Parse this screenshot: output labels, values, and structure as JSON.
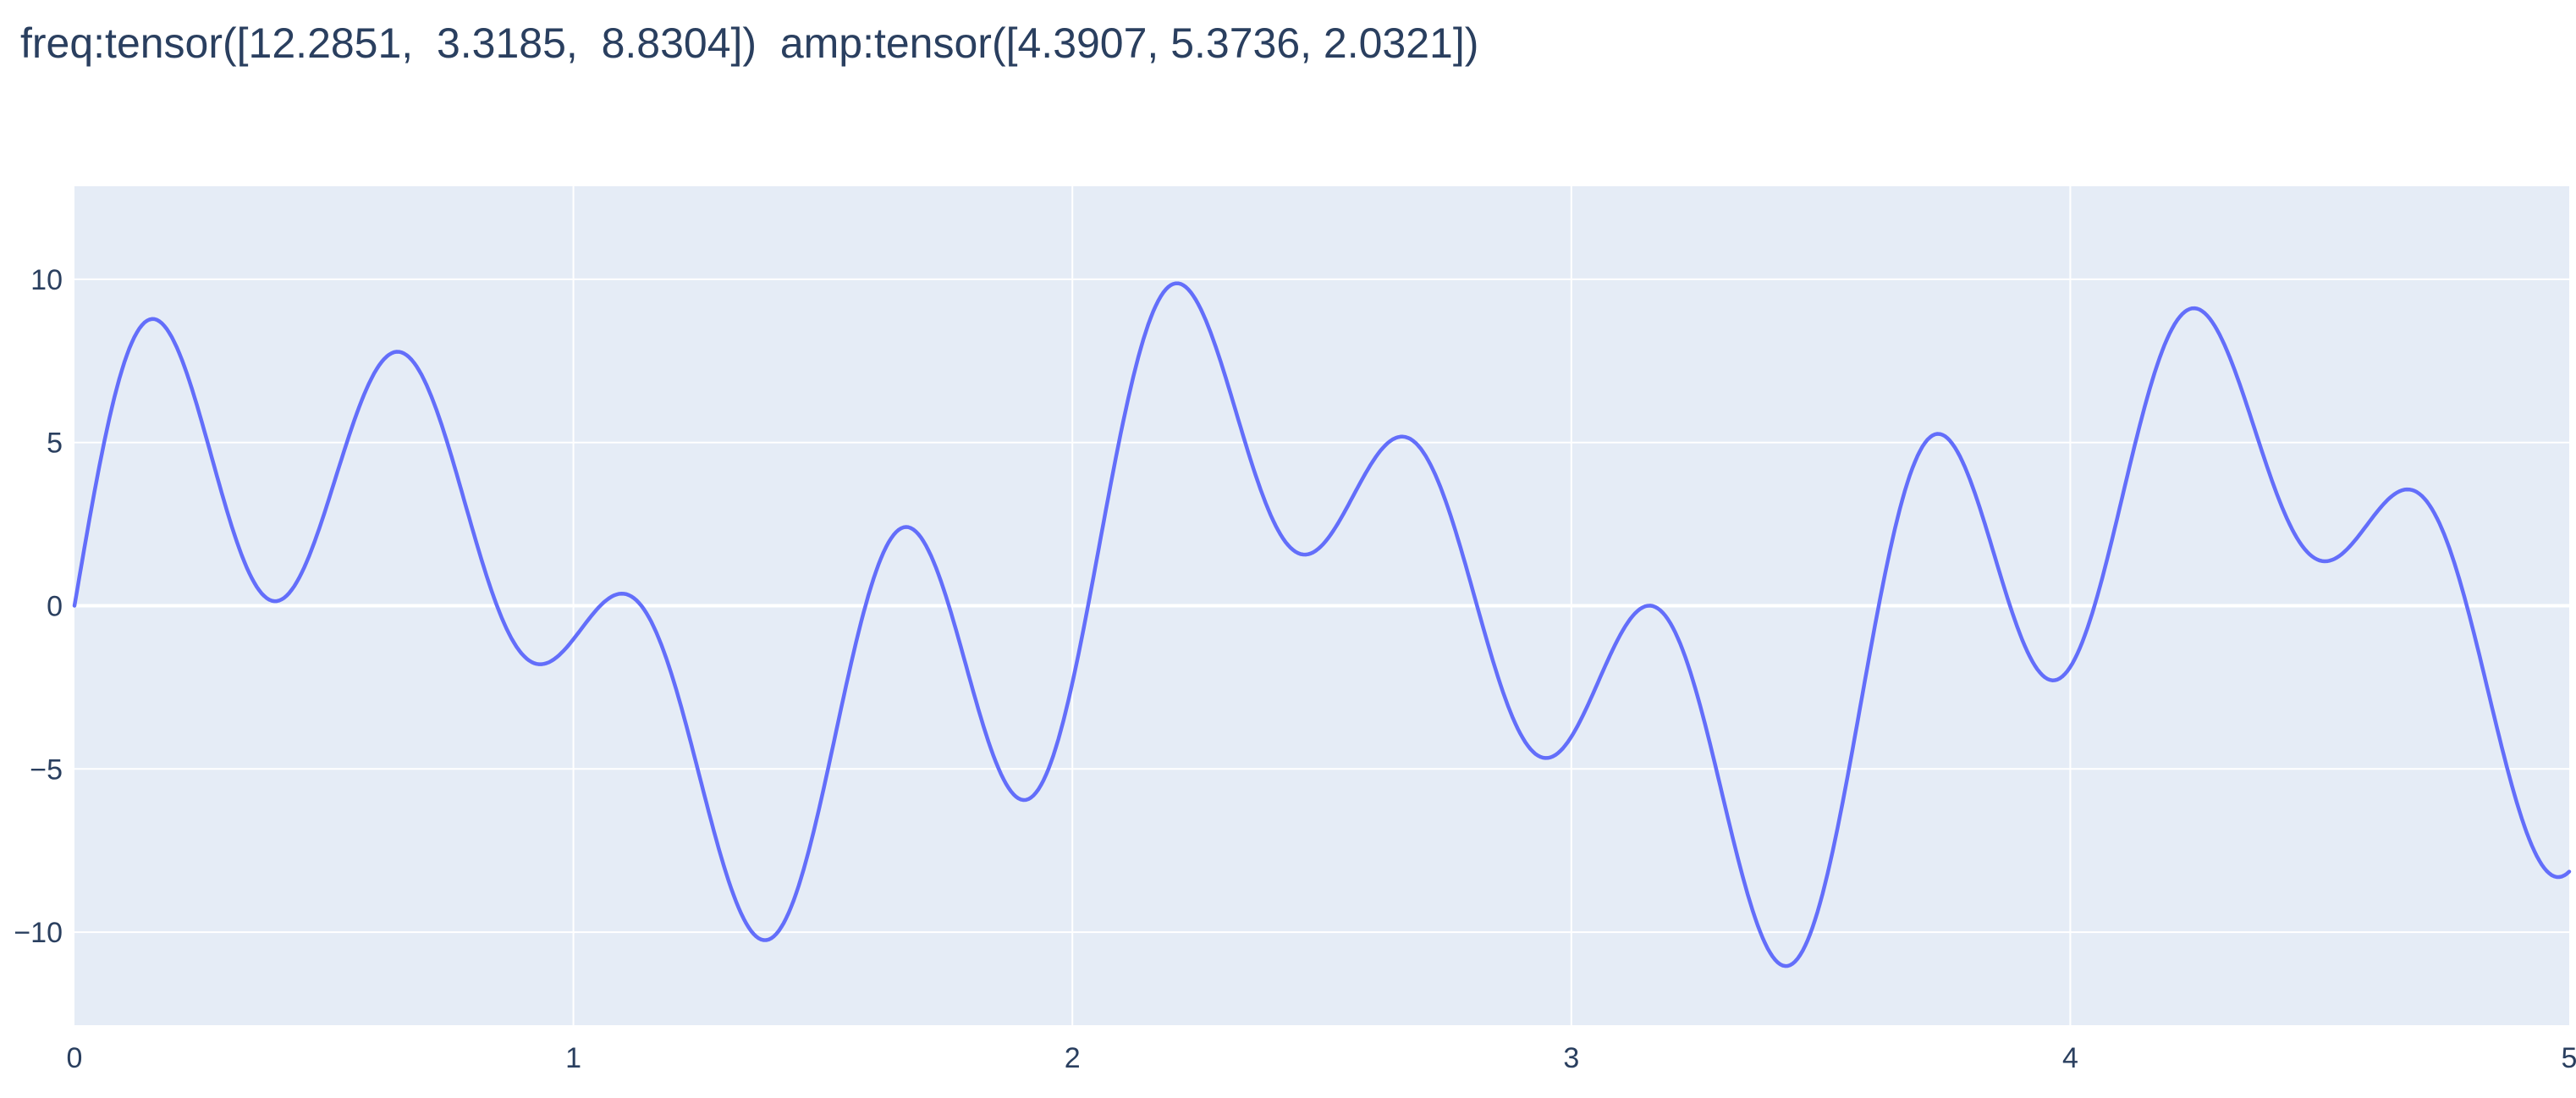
{
  "chart_data": {
    "type": "line",
    "title": "freq:tensor([12.2851,  3.3185,  8.8304])  amp:tensor([4.3907, 5.3736, 2.0321])",
    "xlabel": "",
    "ylabel": "",
    "xlim": [
      0,
      5
    ],
    "ylim": [
      -12.85,
      12.85
    ],
    "xticks": [
      0,
      1,
      2,
      3,
      4,
      5
    ],
    "xtick_labels": [
      "0",
      "1",
      "2",
      "3",
      "4",
      "5"
    ],
    "yticks": [
      -10,
      -5,
      0,
      5,
      10
    ],
    "ytick_labels": [
      "−10",
      "−5",
      "0",
      "5",
      "10"
    ],
    "grid": true,
    "legend": "none",
    "series": [
      {
        "components": [
          {
            "freq": 12.2851,
            "amp": 4.3907
          },
          {
            "freq": 3.3185,
            "amp": 5.3736
          },
          {
            "freq": 8.8304,
            "amp": 2.0321
          }
        ],
        "x_start": 0,
        "x_end": 5,
        "samples": 1000,
        "color": "#636efa"
      }
    ],
    "colors": {
      "plot_bg": "#e5ecf6",
      "grid": "#ffffff",
      "text": "#2a3f5f",
      "line": "#636efa"
    }
  }
}
